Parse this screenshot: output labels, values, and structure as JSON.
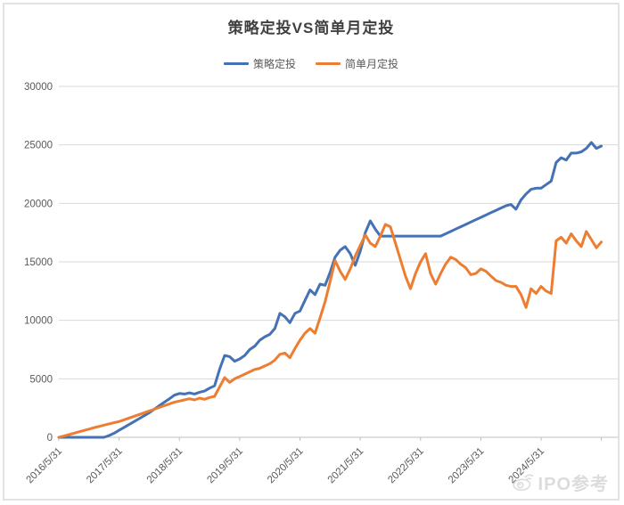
{
  "page": {
    "watermark_text": "IPO参考"
  },
  "chart_data": {
    "type": "line",
    "title": "策略定投VS简单月定投",
    "legend_position": "top",
    "grid": true,
    "xlabel": "",
    "ylabel": "",
    "ylim": [
      0,
      30000
    ],
    "yticks": [
      0,
      5000,
      10000,
      15000,
      20000,
      25000,
      30000
    ],
    "x_tick_labels": [
      "2016/5/31",
      "2017/5/31",
      "2018/5/31",
      "2019/5/31",
      "2020/5/31",
      "2021/5/31",
      "2022/5/31",
      "2023/5/31",
      "2024/5/31"
    ],
    "x_tick_every_points": 12,
    "points_are_monthly": true,
    "axis_color": "#bfbfbf",
    "gridline_color": "#d9d9d9",
    "tick_label_color": "#595959",
    "series": [
      {
        "name": "策略定投",
        "color": "#4472b4",
        "values": [
          0,
          0,
          0,
          0,
          0,
          0,
          0,
          0,
          0,
          0,
          150,
          350,
          600,
          850,
          1100,
          1350,
          1600,
          1850,
          2100,
          2400,
          2700,
          3000,
          3300,
          3600,
          3750,
          3700,
          3800,
          3700,
          3850,
          3950,
          4200,
          4400,
          5800,
          7000,
          6900,
          6500,
          6700,
          7000,
          7500,
          7800,
          8300,
          8600,
          8800,
          9300,
          10600,
          10300,
          9800,
          10600,
          10800,
          11700,
          12600,
          12200,
          13100,
          13000,
          14100,
          15400,
          16000,
          16300,
          15700,
          14700,
          15900,
          17500,
          18500,
          17800,
          17200,
          17200,
          17200,
          17200,
          17200,
          17200,
          17200,
          17200,
          17200,
          17200,
          17200,
          17200,
          17200,
          17400,
          17600,
          17800,
          18000,
          18200,
          18400,
          18600,
          18800,
          19000,
          19200,
          19400,
          19600,
          19800,
          19900,
          19500,
          20300,
          20800,
          21200,
          21300,
          21300,
          21600,
          21900,
          23500,
          23900,
          23700,
          24300,
          24300,
          24400,
          24700,
          25200,
          24700,
          24900
        ]
      },
      {
        "name": "简单月定投",
        "color": "#ed7d31",
        "values": [
          0,
          110,
          230,
          350,
          470,
          590,
          700,
          820,
          930,
          1040,
          1150,
          1250,
          1350,
          1500,
          1650,
          1800,
          1950,
          2100,
          2250,
          2400,
          2550,
          2700,
          2850,
          3000,
          3100,
          3200,
          3300,
          3200,
          3350,
          3250,
          3400,
          3500,
          4300,
          5100,
          4700,
          5000,
          5200,
          5400,
          5600,
          5800,
          5900,
          6100,
          6300,
          6600,
          7100,
          7200,
          6800,
          7600,
          8300,
          8900,
          9300,
          8900,
          10200,
          11600,
          13300,
          15100,
          14200,
          13500,
          14400,
          15500,
          16400,
          17300,
          16600,
          16300,
          17200,
          18200,
          18000,
          16600,
          15200,
          13800,
          12700,
          14000,
          15000,
          15700,
          14000,
          13100,
          14000,
          14800,
          15400,
          15200,
          14800,
          14500,
          13900,
          14000,
          14400,
          14200,
          13800,
          13400,
          13250,
          13000,
          12900,
          12900,
          12200,
          11100,
          12700,
          12300,
          12900,
          12500,
          12300,
          16800,
          17100,
          16600,
          17400,
          16800,
          16300,
          17600,
          16900,
          16200,
          16700
        ]
      }
    ]
  }
}
